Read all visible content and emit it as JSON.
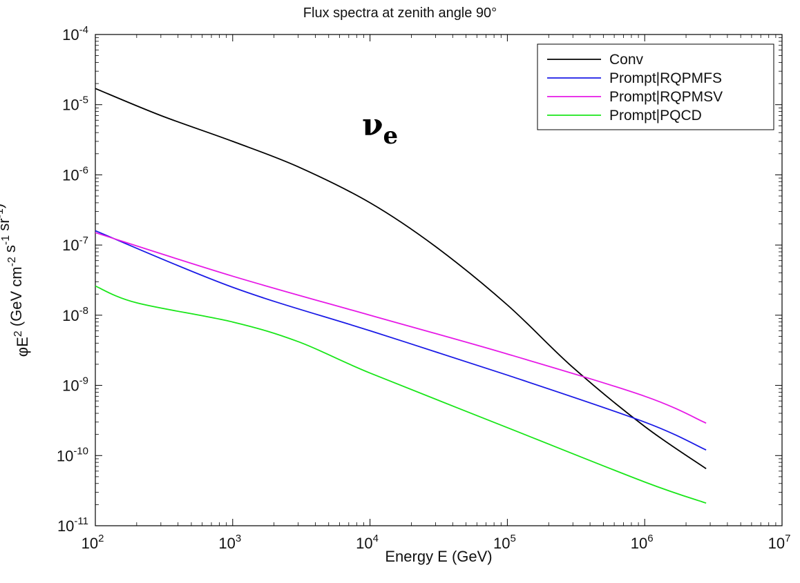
{
  "chart_data": {
    "type": "line",
    "title": "Flux spectra at zenith angle 90°",
    "xlabel": "Energy E (GeV)",
    "ylabel": "φE^2 (GeV cm^-2 s^-1 sr^-1)",
    "xscale": "log",
    "yscale": "log",
    "xlim": [
      100,
      10000000
    ],
    "ylim": [
      1e-11,
      0.0001
    ],
    "x_tick_exponents": [
      2,
      3,
      4,
      5,
      6,
      7
    ],
    "y_tick_exponents": [
      -11,
      -10,
      -9,
      -8,
      -7,
      -6,
      -5,
      -4
    ],
    "tick_base": "10",
    "grid": false,
    "legend_position": "top-right",
    "annotation": {
      "text": "ν",
      "subscript": "e"
    },
    "series": [
      {
        "name": "Conv",
        "color": "#000000",
        "x": [
          100,
          300,
          1000,
          3000,
          10000,
          30000,
          100000,
          300000,
          1000000,
          2800000
        ],
        "y": [
          1.7e-05,
          7e-06,
          3e-06,
          1.3e-06,
          4e-07,
          9.5e-08,
          1.4e-08,
          1.8e-09,
          2.6e-10,
          6.5e-11
        ]
      },
      {
        "name": "Prompt|RQPMFS",
        "color": "#1a1ae6",
        "x": [
          100,
          1000,
          10000,
          100000,
          1000000,
          2800000
        ],
        "y": [
          1.6e-07,
          2.5e-08,
          6e-09,
          1.4e-09,
          3e-10,
          1.2e-10
        ]
      },
      {
        "name": "Prompt|RQPMSV",
        "color": "#e619e6",
        "x": [
          100,
          1000,
          10000,
          100000,
          1000000,
          2800000
        ],
        "y": [
          1.5e-07,
          3.6e-08,
          1e-08,
          2.8e-09,
          7e-10,
          2.9e-10
        ]
      },
      {
        "name": "Prompt|PQCD",
        "color": "#19e619",
        "x": [
          100,
          200,
          1000,
          3000,
          10000,
          100000,
          1000000,
          2800000
        ],
        "y": [
          2.6e-08,
          1.5e-08,
          8e-09,
          4.2e-09,
          1.5e-09,
          2.5e-10,
          4.2e-11,
          2.1e-11
        ]
      }
    ]
  }
}
